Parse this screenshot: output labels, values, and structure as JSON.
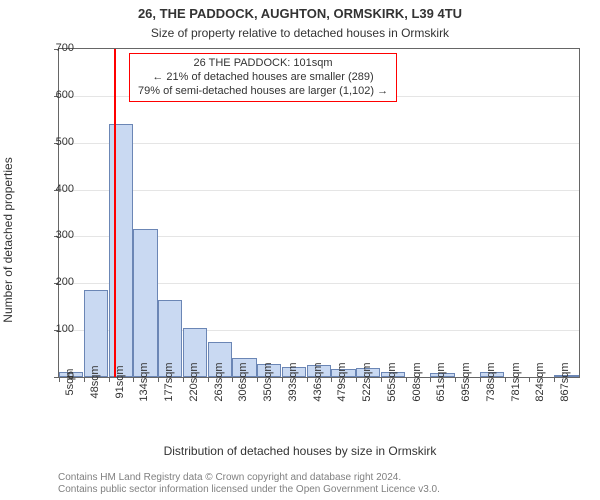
{
  "title_line1": "26, THE PADDOCK, AUGHTON, ORMSKIRK, L39 4TU",
  "title_line2": "Size of property relative to detached houses in Ormskirk",
  "ylabel": "Number of detached properties",
  "xlabel": "Distribution of detached houses by size in Ormskirk",
  "title_fontsize": 13,
  "subtitle_fontsize": 12,
  "axis_label_fontsize": 12,
  "tick_fontsize": 11,
  "annot_fontsize": 11,
  "credit_fontsize": 10,
  "plot_bg": "#ffffff",
  "grid_color": "#e5e5e5",
  "axis_color": "#666666",
  "text_color": "#333333",
  "credit_color": "#808080",
  "chart": {
    "type": "histogram",
    "ylim": [
      0,
      700
    ],
    "ytick_step": 100,
    "xticks": [
      "5sqm",
      "48sqm",
      "91sqm",
      "134sqm",
      "177sqm",
      "220sqm",
      "263sqm",
      "306sqm",
      "350sqm",
      "393sqm",
      "436sqm",
      "479sqm",
      "522sqm",
      "565sqm",
      "608sqm",
      "651sqm",
      "695sqm",
      "738sqm",
      "781sqm",
      "824sqm",
      "867sqm"
    ],
    "bar_fill": "#c9d9f2",
    "bar_stroke": "#6b86b5",
    "values": [
      10,
      185,
      540,
      315,
      165,
      105,
      75,
      40,
      28,
      22,
      25,
      18,
      20,
      10,
      0,
      8,
      0,
      10,
      0,
      0,
      5
    ],
    "marker": {
      "value_sqm": 101,
      "x_range": [
        5,
        910
      ],
      "color": "#ff0000"
    }
  },
  "annotation": {
    "line1": "26 THE PADDOCK: 101sqm",
    "line2": "← 21% of detached houses are smaller (289)",
    "line3": "79% of semi-detached houses are larger (1,102) →",
    "border_color": "#ff0000",
    "bg": "#ffffff"
  },
  "credits": {
    "line1": "Contains HM Land Registry data © Crown copyright and database right 2024.",
    "line2": "Contains public sector information licensed under the Open Government Licence v3.0."
  }
}
